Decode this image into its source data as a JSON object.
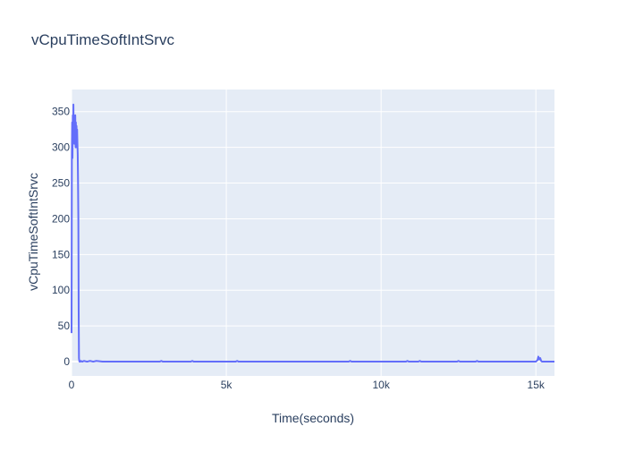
{
  "chart_data": {
    "type": "line",
    "title": "vCpuTimeSoftIntSrvc",
    "xlabel": "Time(seconds)",
    "ylabel": "vCpuTimeSoftIntSrvc",
    "xlim": [
      0,
      15600
    ],
    "ylim": [
      -20,
      381
    ],
    "x_ticks": [
      0,
      5000,
      10000,
      15000
    ],
    "x_tick_labels": [
      "0",
      "5k",
      "10k",
      "15k"
    ],
    "y_ticks": [
      0,
      50,
      100,
      150,
      200,
      250,
      300,
      350
    ],
    "y_tick_labels": [
      "0",
      "50",
      "100",
      "150",
      "200",
      "250",
      "300",
      "350"
    ],
    "grid": true,
    "series": [
      {
        "name": "vCpuTimeSoftIntSrvc",
        "color": "#636efa",
        "x": [
          0,
          10,
          20,
          30,
          40,
          50,
          60,
          70,
          80,
          90,
          100,
          110,
          120,
          130,
          140,
          150,
          160,
          170,
          180,
          190,
          200,
          210,
          220,
          230,
          240,
          250,
          260,
          270,
          280,
          290,
          300,
          350,
          400,
          500,
          600,
          700,
          800,
          1000,
          1500,
          2000,
          2500,
          2850,
          2900,
          2950,
          3500,
          3850,
          3900,
          3950,
          4500,
          5000,
          5300,
          5350,
          5400,
          6000,
          7000,
          8000,
          8950,
          9000,
          9050,
          10000,
          10800,
          10850,
          10900,
          11200,
          11250,
          11300,
          12000,
          12450,
          12500,
          12550,
          13050,
          13100,
          13150,
          14000,
          15000,
          15050,
          15080,
          15110,
          15140,
          15170,
          15200,
          15300,
          15600
        ],
        "y": [
          40,
          290,
          335,
          285,
          345,
          310,
          360,
          320,
          335,
          305,
          340,
          315,
          345,
          300,
          335,
          310,
          330,
          300,
          325,
          305,
          290,
          250,
          200,
          75,
          5,
          1,
          0,
          0,
          0,
          0,
          1,
          0,
          1,
          0,
          1,
          0,
          1,
          0,
          0,
          0,
          0,
          0,
          1,
          0,
          0,
          0,
          1,
          0,
          0,
          0,
          0,
          1,
          0,
          0,
          0,
          0,
          0,
          1,
          0,
          0,
          0,
          1,
          0,
          0,
          1,
          0,
          0,
          0,
          1,
          0,
          0,
          1,
          0,
          0,
          0,
          2,
          7,
          3,
          5,
          1,
          0,
          0,
          0
        ]
      }
    ]
  }
}
